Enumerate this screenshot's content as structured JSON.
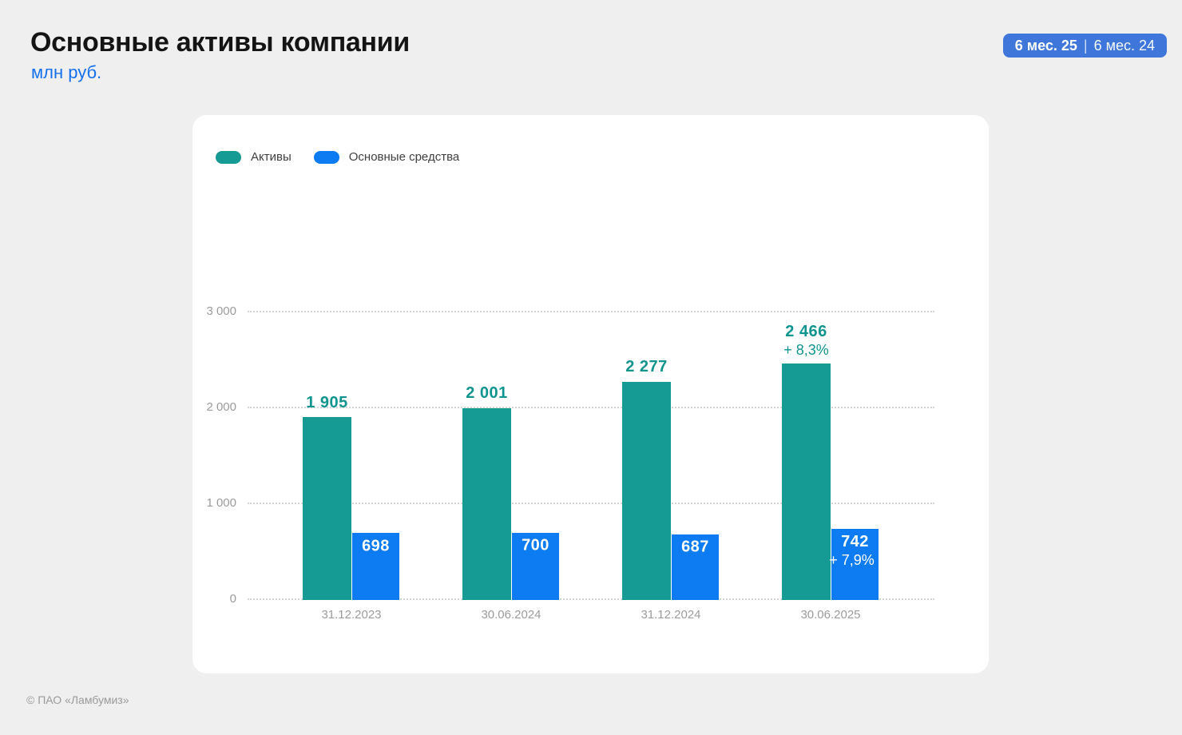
{
  "header": {
    "title": "Основные активы компании",
    "subtitle": "млн руб.",
    "badge": {
      "current": "6 мес. 25",
      "separator": "|",
      "previous": "6 мес. 24"
    }
  },
  "footer": {
    "copyright": "© ПАО «Ламбумиз»"
  },
  "colors": {
    "background": "#efefef",
    "card": "#ffffff",
    "assets_teal": "#159a94",
    "assets_label_teal": "#0f948e",
    "fixed_assets_blue": "#0d7bf2",
    "badge_blue": "#3e77d9",
    "subtitle_blue": "#1470eb",
    "axis_gray": "#9b9b9b",
    "gridline_gray": "#d6d6d6"
  },
  "chart_data": {
    "type": "bar",
    "title": "Основные активы компании",
    "ylabel": "млн руб.",
    "categories": [
      "31.12.2023",
      "30.06.2024",
      "31.12.2024",
      "30.06.2025"
    ],
    "series": [
      {
        "name": "Активы",
        "color": "#159a94",
        "values": [
          1905,
          2001,
          2277,
          2466
        ],
        "labels": [
          "1 905",
          "2 001",
          "2 277",
          "2 466"
        ],
        "growth_labels": [
          null,
          null,
          null,
          "+ 8,3%"
        ]
      },
      {
        "name": "Основные средства",
        "color": "#0d7bf2",
        "values": [
          698,
          700,
          687,
          742
        ],
        "labels": [
          "698",
          "700",
          "687",
          "742"
        ],
        "growth_labels": [
          null,
          null,
          null,
          "+ 7,9%"
        ]
      }
    ],
    "ylim": [
      0,
      3000
    ],
    "yticks": [
      0,
      1000,
      2000,
      3000
    ],
    "ytick_labels": [
      "0",
      "1 000",
      "2 000",
      "3 000"
    ],
    "grid": "horizontal-dotted",
    "legend_position": "top-left"
  }
}
